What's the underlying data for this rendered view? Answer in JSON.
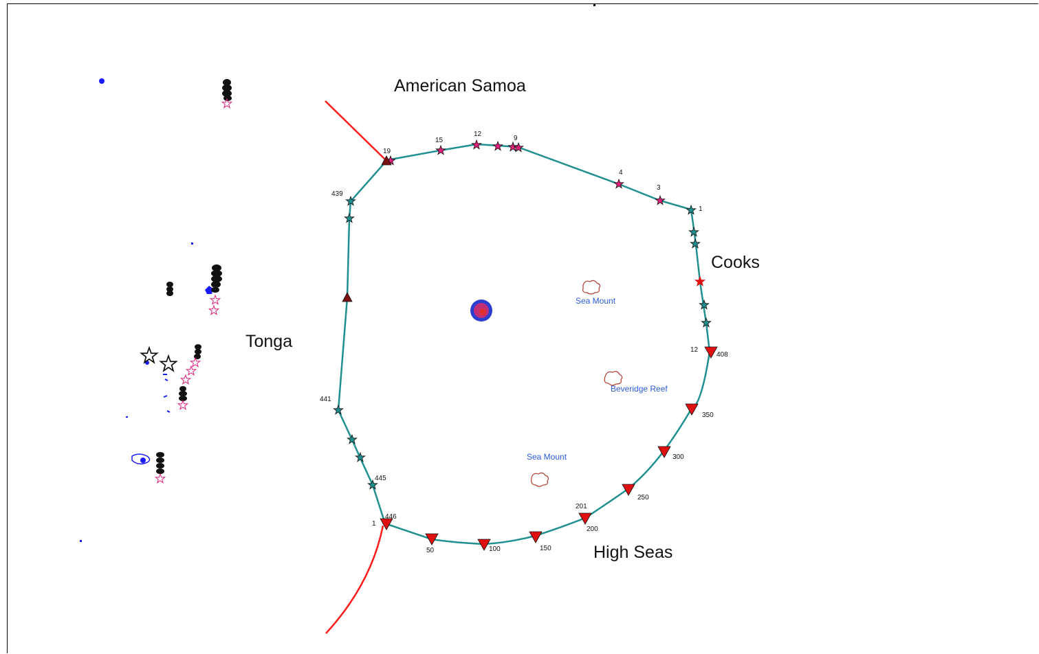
{
  "map": {
    "regions": {
      "american_samoa": "American Samoa",
      "tonga": "Tonga",
      "cooks": "Cooks",
      "high_seas": "High Seas"
    },
    "features": {
      "sea_mount_north": "Sea Mount",
      "beveridge_reef": "Beveridge Reef",
      "sea_mount_south": "Sea Mount"
    },
    "point_labels": {
      "p19": "19",
      "p15": "15",
      "p12top": "12",
      "p9": "9",
      "p4": "4",
      "p3": "3",
      "p1top": "1",
      "p439": "439",
      "p441": "441",
      "p445": "445",
      "p446": "446",
      "p1bottom": "1",
      "p12right": "12",
      "p408": "408",
      "p350": "350",
      "p300": "300",
      "p250": "250",
      "p201": "201",
      "p200": "200",
      "p150": "150",
      "p100": "100",
      "p50": "50"
    },
    "colors": {
      "boundary": "#1f8f8f",
      "eez_line": "#ff1a1a",
      "marker_red": "#e01010",
      "star_pink": "#e0207a",
      "feature_text": "#2a5bd7",
      "reef_outline": "#b03a2e",
      "islands_blue": "#1a1aff"
    }
  }
}
